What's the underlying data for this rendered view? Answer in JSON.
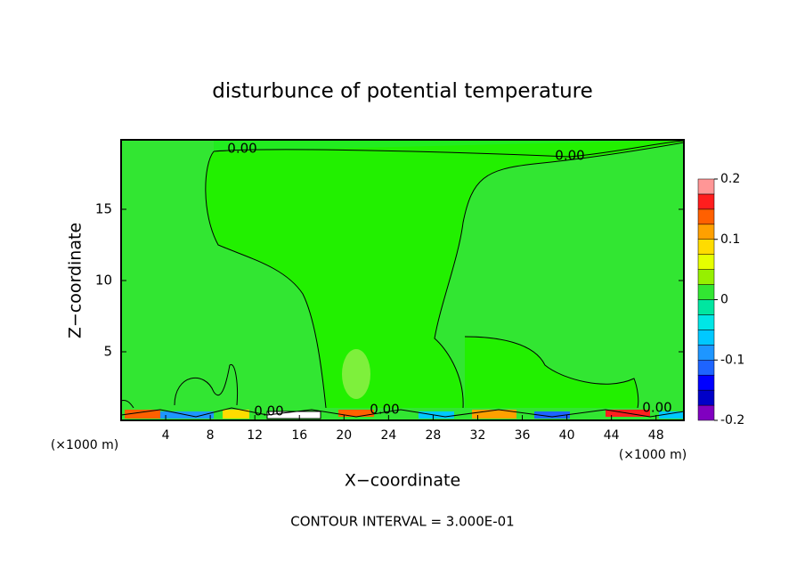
{
  "chart_data": {
    "type": "contour",
    "title": "disturbunce of potential temperature",
    "xlabel": "X−coordinate",
    "ylabel": "Z−coordinate",
    "x_unit": "(×1000 m)",
    "note": "CONTOUR INTERVAL = 3.000E-01",
    "xlim": [
      0,
      50.5
    ],
    "xticks": [
      4,
      8,
      12,
      16,
      20,
      24,
      28,
      32,
      36,
      40,
      44,
      48
    ],
    "ylim": [
      0,
      20
    ],
    "yticks": [
      5,
      10,
      15
    ],
    "contour_labels": [
      "0.00",
      "0.00",
      "0.00",
      "0.00",
      "0.00"
    ],
    "colorbar": {
      "levels": [
        -0.2,
        -0.175,
        -0.15,
        -0.125,
        -0.1,
        -0.075,
        -0.05,
        -0.025,
        0,
        0.025,
        0.05,
        0.075,
        0.1,
        0.125,
        0.15,
        0.175,
        0.2
      ],
      "colors": [
        "#8000c0",
        "#0000c8",
        "#0000ff",
        "#1e64ff",
        "#1e96ff",
        "#00c8ff",
        "#00e6e6",
        "#00e6a0",
        "#32e632",
        "#96f000",
        "#e6ff00",
        "#ffdc00",
        "#ffa000",
        "#ff6000",
        "#ff1e1e",
        "#ff9696"
      ],
      "ticks": [
        -0.2,
        -0.1,
        0,
        0.1,
        0.2
      ]
    }
  }
}
